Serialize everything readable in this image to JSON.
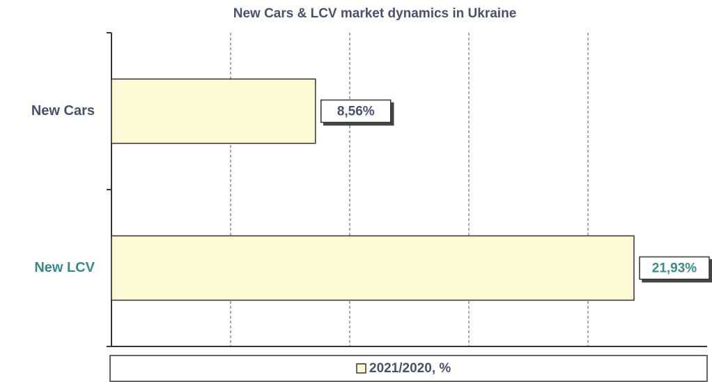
{
  "chart_data": {
    "type": "bar",
    "orientation": "horizontal",
    "title": "New Cars & LCV market dynamics in Ukraine",
    "categories": [
      "New Cars",
      "New LCV"
    ],
    "category_colors": [
      "#4a5068",
      "#3a8a8a"
    ],
    "series": [
      {
        "name": "2021/2020, %",
        "color": "#fbfbd6",
        "values": [
          8.56,
          21.93
        ],
        "value_labels": [
          "8,56%",
          "21,93%"
        ],
        "label_colors": [
          "#4a5068",
          "#3a8a8a"
        ]
      }
    ],
    "xlim": [
      0,
      25
    ],
    "xticks": [
      0,
      5,
      10,
      15,
      20,
      25
    ],
    "grid": true,
    "legend": "bottom"
  }
}
